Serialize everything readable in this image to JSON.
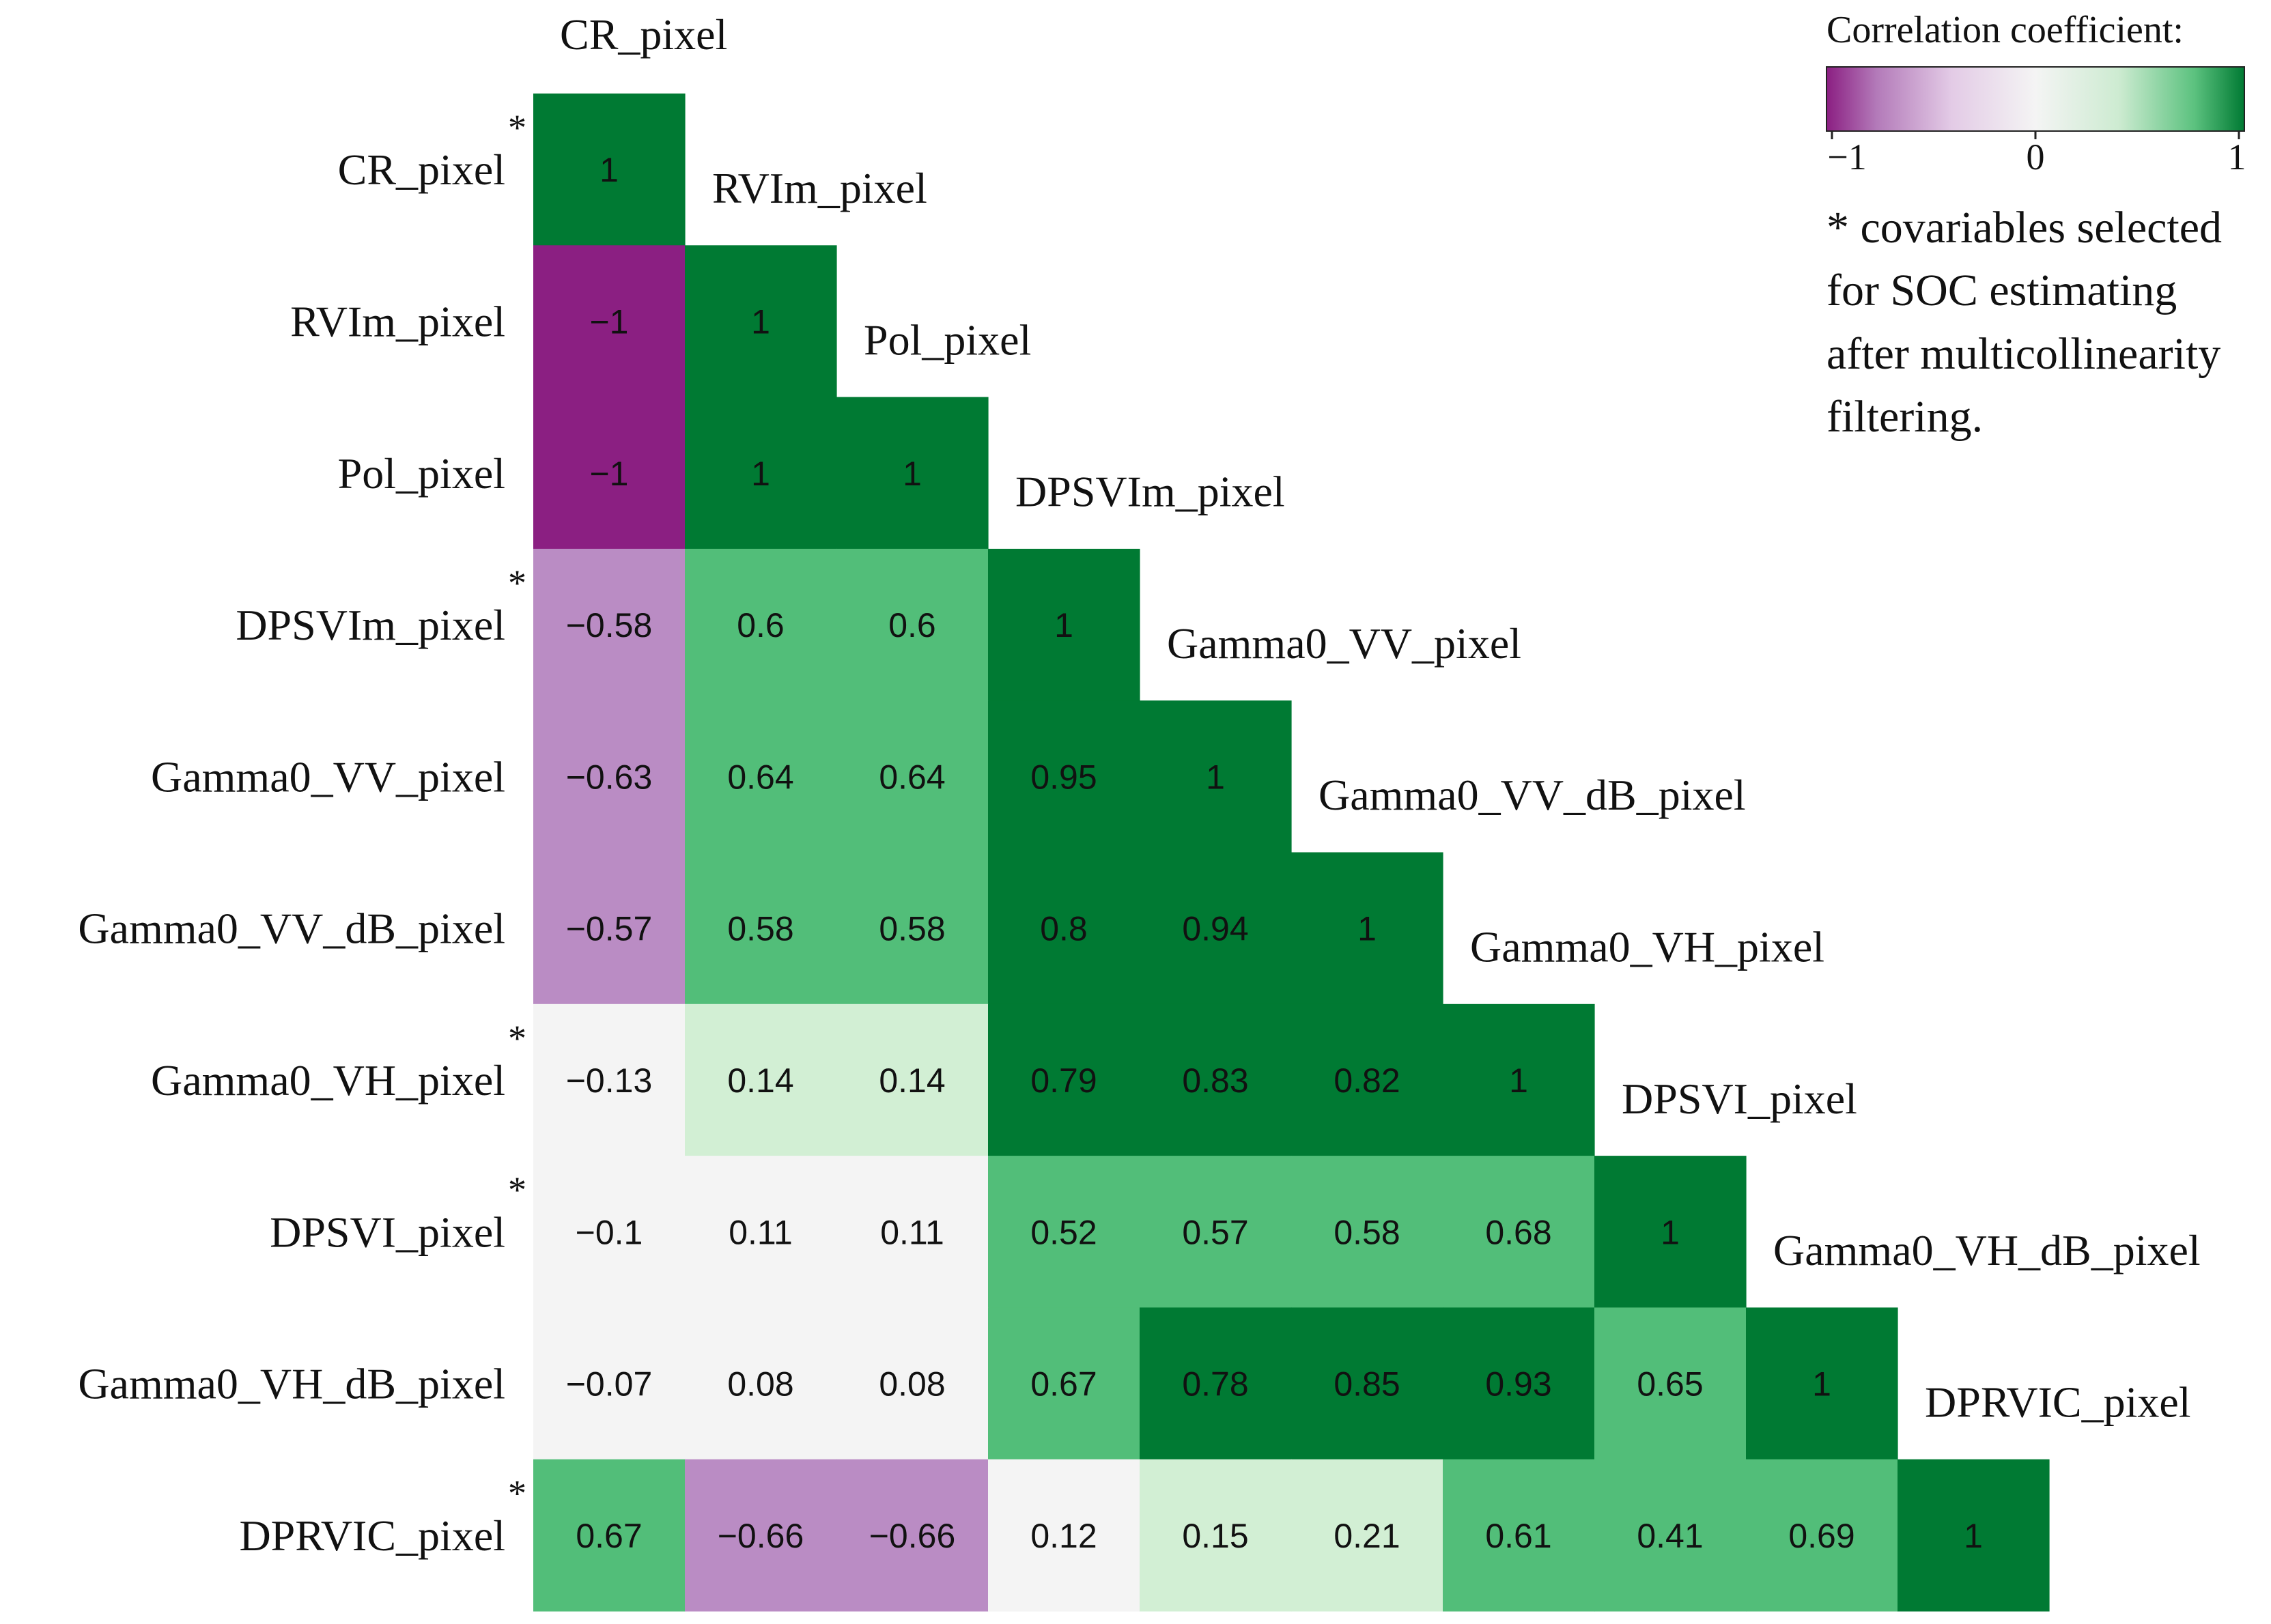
{
  "chart_data": {
    "type": "heatmap",
    "variables": [
      "CR_pixel",
      "RVIm_pixel",
      "Pol_pixel",
      "DPSVIm_pixel",
      "Gamma0_VV_pixel",
      "Gamma0_VV_dB_pixel",
      "Gamma0_VH_pixel",
      "DPSVI_pixel",
      "Gamma0_VH_dB_pixel",
      "DPRVIC_pixel"
    ],
    "selected": [
      true,
      false,
      false,
      true,
      false,
      false,
      true,
      true,
      false,
      true
    ],
    "star_symbol": "*",
    "matrix": [
      [
        1
      ],
      [
        -1,
        1
      ],
      [
        -1,
        1,
        1
      ],
      [
        -0.58,
        0.6,
        0.6,
        1
      ],
      [
        -0.63,
        0.64,
        0.64,
        0.95,
        1
      ],
      [
        -0.57,
        0.58,
        0.58,
        0.8,
        0.94,
        1
      ],
      [
        -0.13,
        0.14,
        0.14,
        0.79,
        0.83,
        0.82,
        1
      ],
      [
        -0.1,
        0.11,
        0.11,
        0.52,
        0.57,
        0.58,
        0.68,
        1
      ],
      [
        -0.07,
        0.08,
        0.08,
        0.67,
        0.78,
        0.85,
        0.93,
        0.65,
        1
      ],
      [
        0.67,
        -0.66,
        -0.66,
        0.12,
        0.15,
        0.21,
        0.61,
        0.41,
        0.69,
        1
      ]
    ],
    "color_scale": {
      "min": -1,
      "mid": 0,
      "max": 1,
      "low_color": "#8b1f82",
      "mid_color": "#f4f4f4",
      "high_color": "#007a33"
    },
    "legend": {
      "title": "Correlation coefficient:",
      "ticks": [
        "−1",
        "0",
        "1"
      ],
      "note_lines": [
        "* covariables selected",
        "for SOC estimating",
        "after multicollinearity",
        "filtering."
      ]
    }
  },
  "colors": {
    "strong_positive": "#007a33",
    "moderate_positive": "#52be79",
    "weak_positive": "#d2efd4",
    "neutral": "#f4f4f4",
    "moderate_negative": "#ba8cc4",
    "strong_negative": "#8b1f82"
  }
}
